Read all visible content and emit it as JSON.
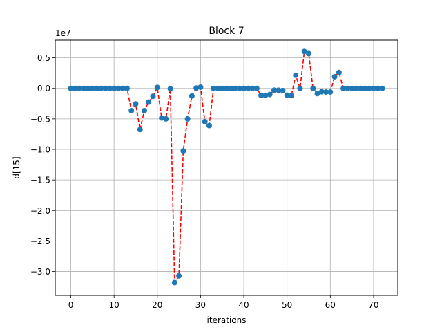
{
  "chart_data": {
    "type": "scatter",
    "title": "Block 7",
    "xlabel": "iterations",
    "ylabel": "d[15]",
    "offset_text": "1e7",
    "xlim": [
      -3.6,
      75.6
    ],
    "ylim": [
      -33900000.0,
      7900000.0
    ],
    "xticks": [
      0,
      10,
      20,
      30,
      40,
      50,
      60,
      70
    ],
    "xtick_labels": [
      "0",
      "10",
      "20",
      "30",
      "40",
      "50",
      "60",
      "70"
    ],
    "yticks": [
      5000000.0,
      0,
      -5000000.0,
      -10000000.0,
      -15000000.0,
      -20000000.0,
      -25000000.0,
      -30000000.0
    ],
    "ytick_labels": [
      "0.5",
      "0.0",
      "−0.5",
      "−1.0",
      "−1.5",
      "−2.0",
      "−2.5",
      "−3.0"
    ],
    "grid": true,
    "marker_color": "#1f77b4",
    "line_color": "#ff0000",
    "line_style": "dashed",
    "x": [
      0,
      1,
      2,
      3,
      4,
      5,
      6,
      7,
      8,
      9,
      10,
      11,
      12,
      13,
      14,
      15,
      16,
      17,
      18,
      19,
      20,
      21,
      22,
      23,
      24,
      25,
      26,
      27,
      28,
      29,
      30,
      31,
      32,
      33,
      34,
      35,
      36,
      37,
      38,
      39,
      40,
      41,
      42,
      43,
      44,
      45,
      46,
      47,
      48,
      49,
      50,
      51,
      52,
      53,
      54,
      55,
      56,
      57,
      58,
      59,
      60,
      61,
      62,
      63,
      64,
      65,
      66,
      67,
      68,
      69,
      70,
      71,
      72
    ],
    "y": [
      0,
      0,
      0,
      0,
      0,
      0,
      0,
      0,
      0,
      0,
      0,
      0,
      0,
      0,
      -3650000,
      -2550000,
      -6750000,
      -3650000,
      -2250000,
      -1300000,
      150000,
      -4850000,
      -5000000,
      -50000,
      -31800000,
      -30700000,
      -10250000,
      -5000000,
      -1250000,
      50000,
      200000,
      -5450000,
      -6100000,
      0,
      0,
      0,
      0,
      0,
      0,
      0,
      0,
      0,
      0,
      0,
      -1150000,
      -1150000,
      -1000000,
      -300000,
      -300000,
      -350000,
      -1100000,
      -1200000,
      2150000,
      0,
      6050000,
      5700000,
      0,
      -850000,
      -550000,
      -600000,
      -600000,
      1900000,
      2600000,
      0,
      0,
      0,
      0,
      0,
      0,
      0,
      0,
      0,
      0
    ]
  }
}
